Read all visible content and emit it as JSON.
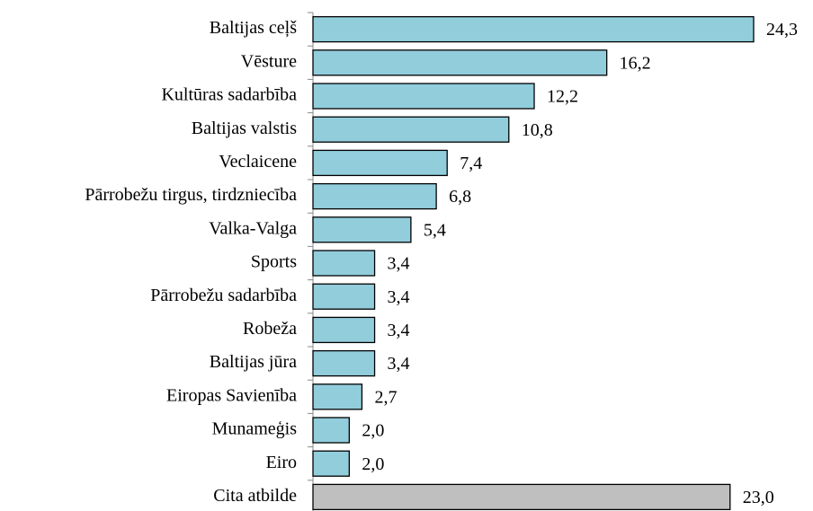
{
  "chart_data": {
    "type": "bar",
    "orientation": "horizontal",
    "categories": [
      "Baltijas ceļš",
      "Vēsture",
      "Kultūras sadarbība",
      "Baltijas valstis",
      "Veclaicene",
      "Pārrobežu tirgus, tirdzniecība",
      "Valka-Valga",
      "Sports",
      "Pārrobežu sadarbība",
      "Robeža",
      "Baltijas jūra",
      "Eiropas Savienība",
      "Munameģis",
      "Eiro",
      "Cita atbilde"
    ],
    "values": [
      24.3,
      16.2,
      12.2,
      10.8,
      7.4,
      6.8,
      5.4,
      3.4,
      3.4,
      3.4,
      3.4,
      2.7,
      2.0,
      2.0,
      23.0
    ],
    "value_labels": [
      "24,3",
      "16,2",
      "12,2",
      "10,8",
      "7,4",
      "6,8",
      "5,4",
      "3,4",
      "3,4",
      "3,4",
      "3,4",
      "2,7",
      "2,0",
      "2,0",
      "23,0"
    ],
    "colors": [
      "#92cddc",
      "#92cddc",
      "#92cddc",
      "#92cddc",
      "#92cddc",
      "#92cddc",
      "#92cddc",
      "#92cddc",
      "#92cddc",
      "#92cddc",
      "#92cddc",
      "#92cddc",
      "#92cddc",
      "#92cddc",
      "#bfbfbf"
    ]
  }
}
